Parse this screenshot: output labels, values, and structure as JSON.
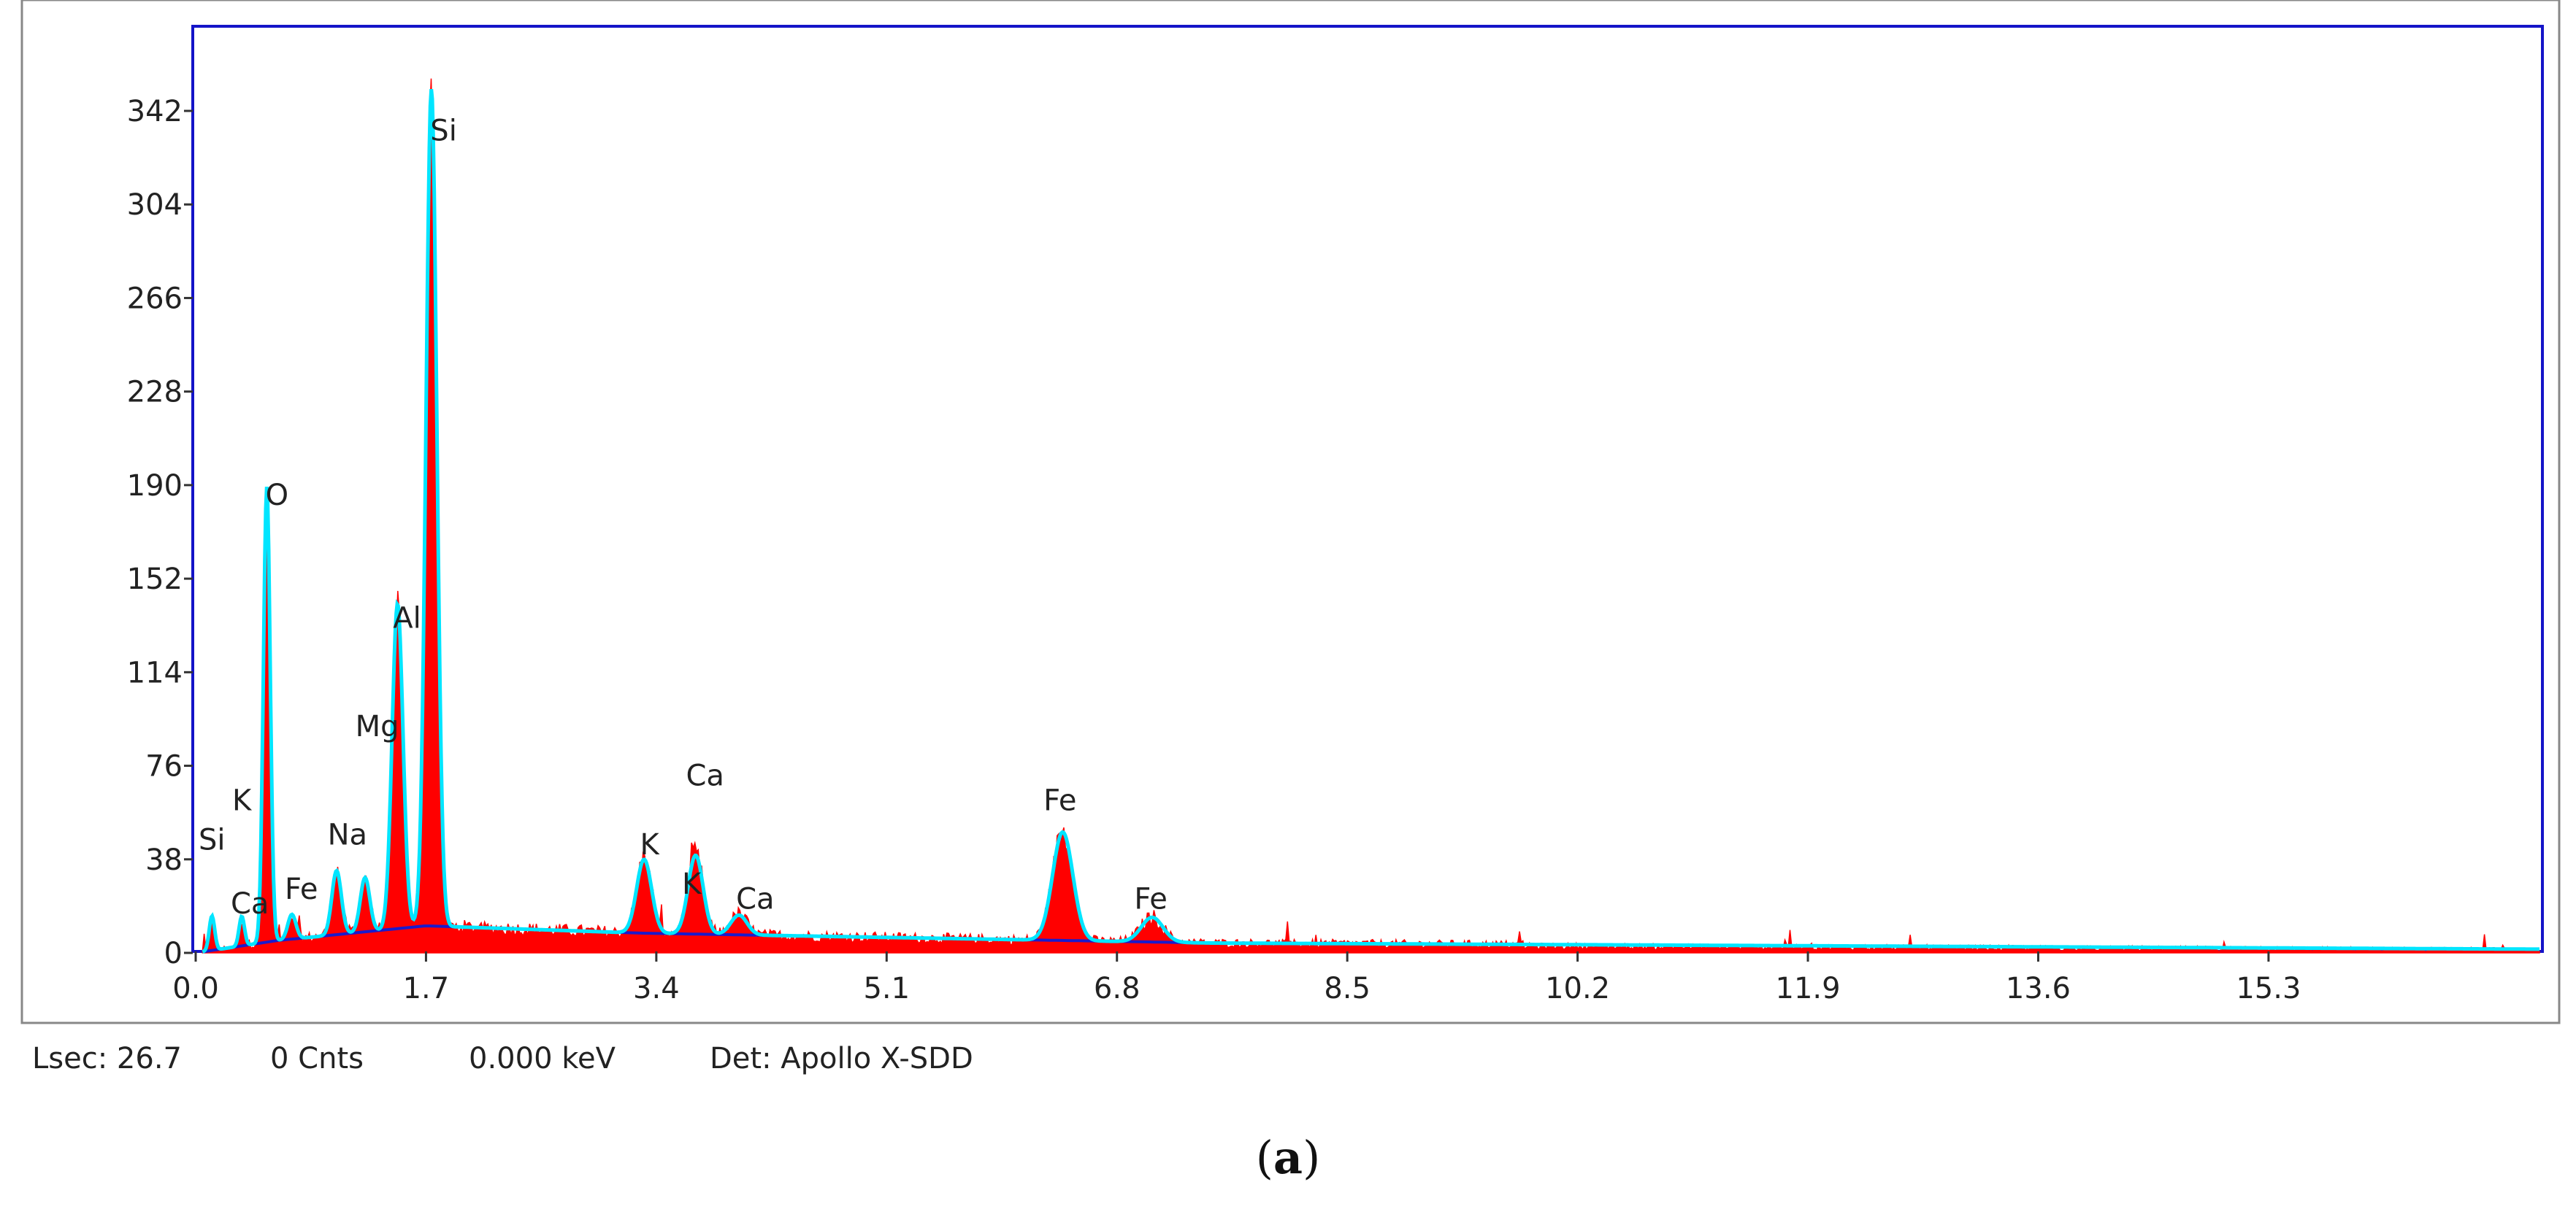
{
  "chart_data": {
    "type": "area",
    "x_ticks": [
      "0.0",
      "1.7",
      "3.4",
      "5.1",
      "6.8",
      "8.5",
      "10.2",
      "11.9",
      "13.6",
      "15.3"
    ],
    "y_ticks": [
      "0",
      "38",
      "76",
      "114",
      "152",
      "190",
      "228",
      "266",
      "304",
      "342"
    ],
    "xlim": [
      0,
      17.3
    ],
    "ylim": [
      0,
      380
    ],
    "grid": false,
    "colors": {
      "spectrum": "#ff0000",
      "fit": "#00e5ff",
      "background": "#1a1acc",
      "frame": "#1414c8"
    },
    "peaks": [
      {
        "x": 0.12,
        "y": 14,
        "w": 0.02
      },
      {
        "x": 0.34,
        "y": 12,
        "w": 0.02
      },
      {
        "x": 0.525,
        "y": 185,
        "w": 0.025
      },
      {
        "x": 0.71,
        "y": 10,
        "w": 0.03
      },
      {
        "x": 1.04,
        "y": 26,
        "w": 0.035
      },
      {
        "x": 1.25,
        "y": 22,
        "w": 0.035
      },
      {
        "x": 1.49,
        "y": 132,
        "w": 0.04
      },
      {
        "x": 1.74,
        "y": 340,
        "w": 0.04
      },
      {
        "x": 3.31,
        "y": 30,
        "w": 0.055
      },
      {
        "x": 3.69,
        "y": 32,
        "w": 0.055
      },
      {
        "x": 4.01,
        "y": 8,
        "w": 0.06
      },
      {
        "x": 6.4,
        "y": 44,
        "w": 0.075
      },
      {
        "x": 7.06,
        "y": 10,
        "w": 0.08
      }
    ],
    "peak_labels": [
      {
        "text": "Si",
        "x": 0.12,
        "y": 42
      },
      {
        "text": "K",
        "x": 0.34,
        "y": 58
      },
      {
        "text": "Ca",
        "x": 0.4,
        "y": 16
      },
      {
        "text": "O",
        "x": 0.6,
        "y": 182
      },
      {
        "text": "Fe",
        "x": 0.78,
        "y": 22
      },
      {
        "text": "Na",
        "x": 1.12,
        "y": 44
      },
      {
        "text": "Mg",
        "x": 1.34,
        "y": 88
      },
      {
        "text": "Al",
        "x": 1.56,
        "y": 132
      },
      {
        "text": "Si",
        "x": 1.83,
        "y": 330
      },
      {
        "text": "K",
        "x": 3.35,
        "y": 40
      },
      {
        "text": "K",
        "x": 3.66,
        "y": 24
      },
      {
        "text": "Ca",
        "x": 3.76,
        "y": 68
      },
      {
        "text": "Ca",
        "x": 4.13,
        "y": 18
      },
      {
        "text": "Fe",
        "x": 6.38,
        "y": 58
      },
      {
        "text": "Fe",
        "x": 7.05,
        "y": 18
      }
    ]
  },
  "status": {
    "lsec": "Lsec: 26.7",
    "cnts": "0 Cnts",
    "kev": "0.000 keV",
    "det": "Det: Apollo X-SDD"
  },
  "caption": {
    "open": "(",
    "letter": "a",
    "close": ")"
  }
}
